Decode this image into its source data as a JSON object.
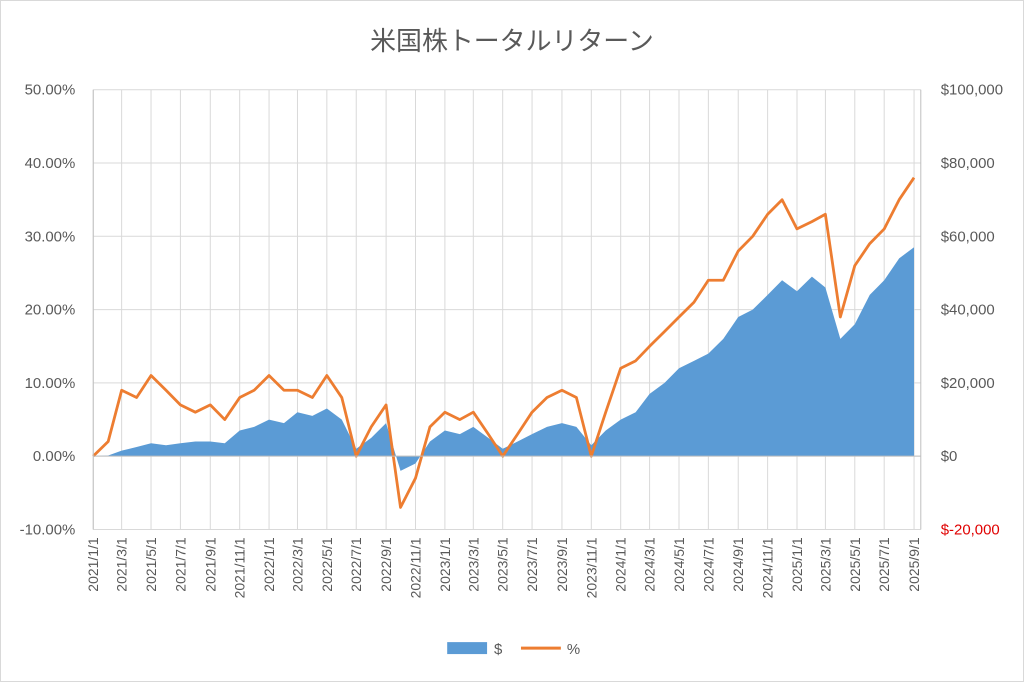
{
  "chart_data": {
    "type": "area+line",
    "title": "米国株トータルリターン",
    "x_tick_labels": [
      "2021/1/1",
      "2021/3/1",
      "2021/5/1",
      "2021/7/1",
      "2021/9/1",
      "2021/11/1",
      "2022/1/1",
      "2022/3/1",
      "2022/5/1",
      "2022/7/1",
      "2022/9/1",
      "2022/11/1",
      "2023/1/1",
      "2023/3/1",
      "2023/5/1",
      "2023/7/1",
      "2023/9/1",
      "2023/11/1",
      "2024/1/1",
      "2024/3/1",
      "2024/5/1",
      "2024/7/1",
      "2024/9/1",
      "2024/11/1",
      "2025/1/1",
      "2025/3/1",
      "2025/5/1",
      "2025/7/1",
      "2025/9/1"
    ],
    "y_left": {
      "ticks": [
        "50.00%",
        "40.00%",
        "30.00%",
        "20.00%",
        "10.00%",
        "0.00%",
        "-10.00%"
      ],
      "ylim": [
        -10,
        50
      ]
    },
    "y_right": {
      "ticks": [
        "$100,000",
        "$80,000",
        "$60,000",
        "$40,000",
        "$20,000",
        "$0",
        "$-20,000"
      ],
      "ylim": [
        -20000,
        100000
      ],
      "negative_color": "#e00000"
    },
    "series": [
      {
        "name": "$",
        "kind": "area",
        "axis": "right",
        "color": "#5b9bd5",
        "x": [
          "2021/1/1",
          "2021/2/1",
          "2021/3/1",
          "2021/4/1",
          "2021/5/1",
          "2021/6/1",
          "2021/7/1",
          "2021/8/1",
          "2021/9/1",
          "2021/10/1",
          "2021/11/1",
          "2021/12/1",
          "2022/1/1",
          "2022/2/1",
          "2022/3/1",
          "2022/4/1",
          "2022/5/1",
          "2022/6/1",
          "2022/7/1",
          "2022/8/1",
          "2022/9/1",
          "2022/10/1",
          "2022/11/1",
          "2022/12/1",
          "2023/1/1",
          "2023/2/1",
          "2023/3/1",
          "2023/4/1",
          "2023/5/1",
          "2023/6/1",
          "2023/7/1",
          "2023/8/1",
          "2023/9/1",
          "2023/10/1",
          "2023/11/1",
          "2023/12/1",
          "2024/1/1",
          "2024/2/1",
          "2024/3/1",
          "2024/4/1",
          "2024/5/1",
          "2024/6/1",
          "2024/7/1",
          "2024/8/1",
          "2024/9/1",
          "2024/10/1",
          "2024/11/1",
          "2024/12/1",
          "2025/1/1",
          "2025/2/1",
          "2025/3/1",
          "2025/4/1",
          "2025/5/1",
          "2025/6/1",
          "2025/7/1",
          "2025/8/1",
          "2025/9/1"
        ],
        "values": [
          0,
          200,
          1500,
          2500,
          3500,
          3000,
          3500,
          4000,
          4000,
          3500,
          7000,
          8000,
          10000,
          9000,
          12000,
          11000,
          13000,
          10000,
          2000,
          5000,
          9000,
          -4000,
          -2000,
          4000,
          7000,
          6000,
          8000,
          5000,
          2000,
          4000,
          6000,
          8000,
          9000,
          8000,
          3000,
          7000,
          10000,
          12000,
          17000,
          20000,
          24000,
          26000,
          28000,
          32000,
          38000,
          40000,
          44000,
          48000,
          45000,
          49000,
          46000,
          32000,
          36000,
          44000,
          48000,
          54000,
          57000
        ]
      },
      {
        "name": "%",
        "kind": "line",
        "axis": "left",
        "color": "#ed7d31",
        "x": [
          "2021/1/1",
          "2021/2/1",
          "2021/3/1",
          "2021/4/1",
          "2021/5/1",
          "2021/6/1",
          "2021/7/1",
          "2021/8/1",
          "2021/9/1",
          "2021/10/1",
          "2021/11/1",
          "2021/12/1",
          "2022/1/1",
          "2022/2/1",
          "2022/3/1",
          "2022/4/1",
          "2022/5/1",
          "2022/6/1",
          "2022/7/1",
          "2022/8/1",
          "2022/9/1",
          "2022/10/1",
          "2022/11/1",
          "2022/12/1",
          "2023/1/1",
          "2023/2/1",
          "2023/3/1",
          "2023/4/1",
          "2023/5/1",
          "2023/6/1",
          "2023/7/1",
          "2023/8/1",
          "2023/9/1",
          "2023/10/1",
          "2023/11/1",
          "2023/12/1",
          "2024/1/1",
          "2024/2/1",
          "2024/3/1",
          "2024/4/1",
          "2024/5/1",
          "2024/6/1",
          "2024/7/1",
          "2024/8/1",
          "2024/9/1",
          "2024/10/1",
          "2024/11/1",
          "2024/12/1",
          "2025/1/1",
          "2025/2/1",
          "2025/3/1",
          "2025/4/1",
          "2025/5/1",
          "2025/6/1",
          "2025/7/1",
          "2025/8/1",
          "2025/9/1"
        ],
        "values": [
          0,
          2,
          9,
          8,
          11,
          9,
          7,
          6,
          7,
          5,
          8,
          9,
          11,
          9,
          9,
          8,
          11,
          8,
          0,
          4,
          7,
          -7,
          -3,
          4,
          6,
          5,
          6,
          3,
          0,
          3,
          6,
          8,
          9,
          8,
          0,
          6,
          12,
          13,
          15,
          17,
          19,
          21,
          24,
          24,
          28,
          30,
          33,
          35,
          31,
          32,
          33,
          19,
          26,
          29,
          31,
          35,
          38
        ]
      }
    ],
    "legend": {
      "position": "bottom",
      "entries": [
        "$",
        "%"
      ]
    },
    "grid": {
      "horizontal": true,
      "vertical": true,
      "color": "#d9d9d9"
    }
  }
}
